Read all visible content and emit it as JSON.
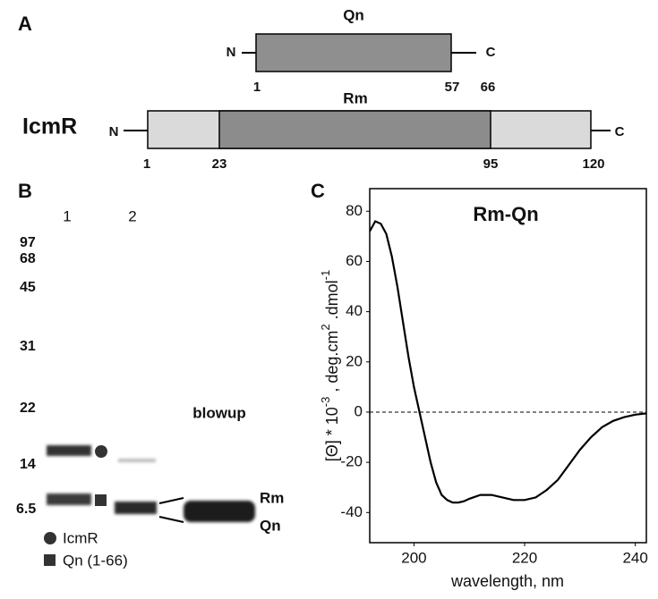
{
  "panel_a": {
    "label": "A",
    "qn": {
      "name": "Qn",
      "n": "N",
      "c": "C",
      "start": "1",
      "end_core": "57",
      "end": "66"
    },
    "icmr": {
      "protein": "IcmR",
      "name": "Rm",
      "n": "N",
      "c": "C",
      "start": "1",
      "core_start": "23",
      "core_end": "95",
      "end": "120"
    }
  },
  "panel_b": {
    "label": "B",
    "lanes": [
      "1",
      "2"
    ],
    "markers": [
      "97",
      "68",
      "45",
      "31",
      "22",
      "14",
      "6.5"
    ],
    "blowup": "blowup",
    "band_labels": [
      "Rm",
      "Qn"
    ],
    "legend": [
      "IcmR",
      "Qn (1-66)"
    ]
  },
  "chart_data": {
    "type": "line",
    "panel_label": "C",
    "title": "Rm-Qn",
    "xlabel": "wavelength, nm",
    "ylabel": [
      "[Θ] * 10",
      "-3",
      " , deg.cm",
      "2",
      " .dmol",
      "-1"
    ],
    "x": [
      192,
      193,
      194,
      195,
      196,
      197,
      198,
      199,
      200,
      201,
      202,
      203,
      204,
      205,
      206,
      207,
      208,
      209,
      210,
      212,
      214,
      216,
      218,
      220,
      222,
      224,
      226,
      228,
      230,
      232,
      234,
      236,
      238,
      240,
      242
    ],
    "y": [
      72,
      76,
      75,
      71,
      62,
      50,
      36,
      22,
      10,
      0,
      -10,
      -20,
      -28,
      -33,
      -35,
      -36,
      -36,
      -35.5,
      -34.5,
      -33,
      -33,
      -34,
      -35,
      -35,
      -34,
      -31,
      -27,
      -21,
      -15,
      -10,
      -6,
      -3.5,
      -2,
      -1,
      -0.5
    ],
    "color": "#000000",
    "xlim": [
      192,
      242
    ],
    "xticks": [
      200,
      220,
      240
    ],
    "ylim": [
      -52,
      89
    ],
    "yticks": [
      80,
      60,
      40,
      20,
      0,
      -20,
      -40
    ],
    "reference_line": 0,
    "grid": false
  }
}
